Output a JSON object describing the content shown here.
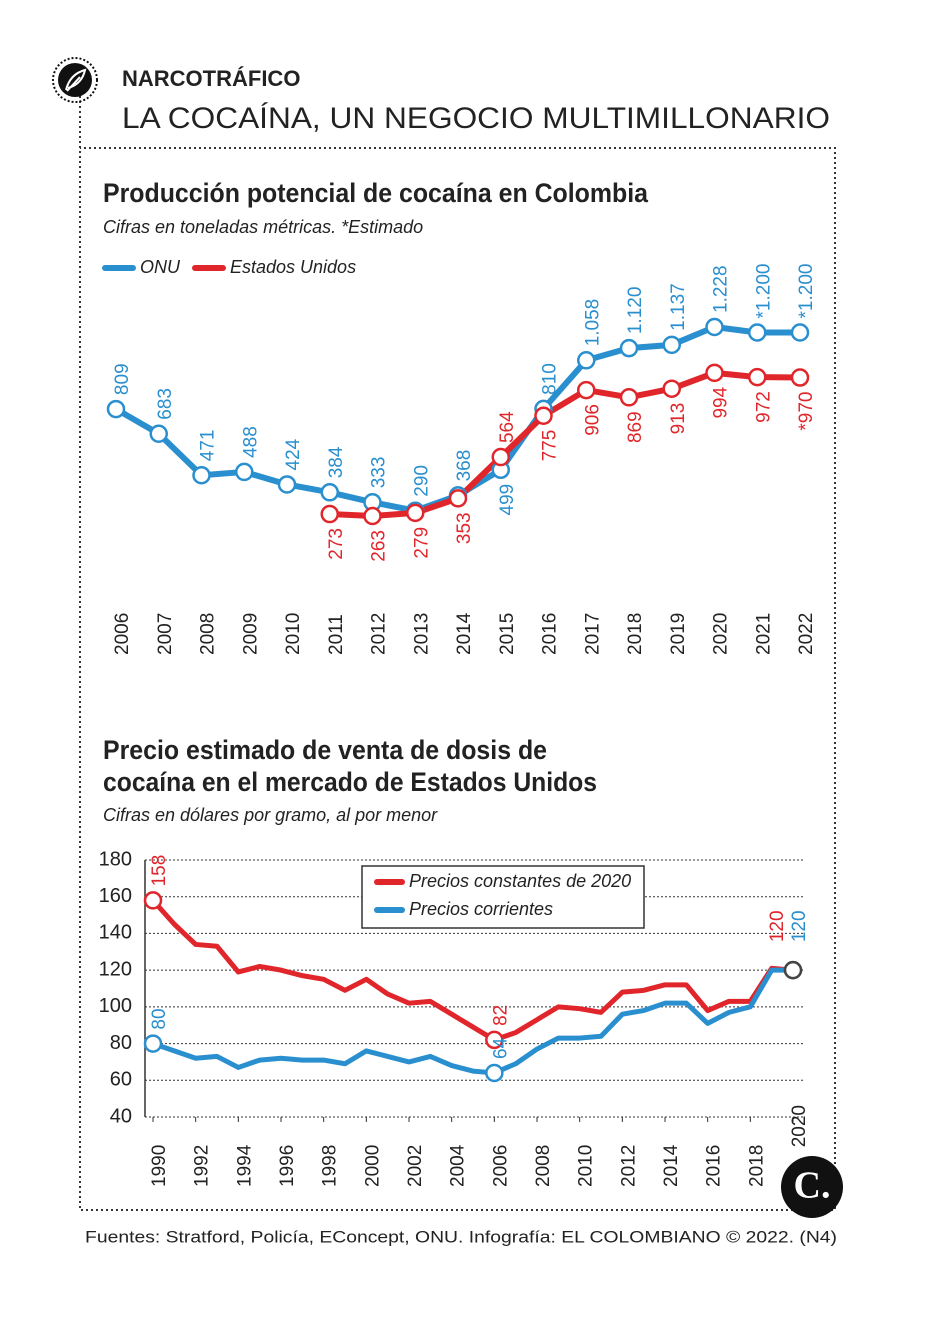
{
  "header": {
    "kicker": "NARCOTRÁFICO",
    "title": "LA COCAÍNA, UN NEGOCIO MULTIMILLONARIO"
  },
  "source": "Fuentes: Stratford, Policía, EConcept, ONU. Infografía: EL COLOMBIANO © 2022. (N4)",
  "chart_data": [
    {
      "type": "line",
      "title": "Producción potencial de cocaína en Colombia",
      "subtitle": "Cifras en toneladas métricas. *Estimado",
      "categories": [
        "2006",
        "2007",
        "2008",
        "2009",
        "2010",
        "2011",
        "2012",
        "2013",
        "2014",
        "2015",
        "2016",
        "2017",
        "2018",
        "2019",
        "2020",
        "2021",
        "2022"
      ],
      "series": [
        {
          "name": "ONU",
          "color": "#2a8fcf",
          "values": [
            809,
            683,
            471,
            488,
            424,
            384,
            333,
            290,
            368,
            499,
            810,
            1058,
            1120,
            1137,
            1228,
            1200,
            1200
          ],
          "value_labels": [
            "809",
            "683",
            "471",
            "488",
            "424",
            "384",
            "333",
            "290",
            "368",
            "499",
            "810",
            "1.058",
            "1.120",
            "1.137",
            "1.228",
            "*1.200",
            "*1.200"
          ]
        },
        {
          "name": "Estados Unidos",
          "color": "#e0262b",
          "values": [
            null,
            null,
            null,
            null,
            null,
            273,
            263,
            279,
            353,
            564,
            775,
            906,
            869,
            913,
            994,
            972,
            970
          ],
          "value_labels": [
            null,
            null,
            null,
            null,
            null,
            "273",
            "263",
            "279",
            "353",
            "564",
            "775",
            "906",
            "869",
            "913",
            "994",
            "972",
            "*970"
          ]
        }
      ]
    },
    {
      "type": "line",
      "title": "Precio estimado de venta de dosis de cocaína en el mercado de Estados Unidos",
      "subtitle": "Cifras en dólares por gramo, al por menor",
      "x": [
        1990,
        1991,
        1992,
        1993,
        1994,
        1995,
        1996,
        1997,
        1998,
        1999,
        2000,
        2001,
        2002,
        2003,
        2004,
        2005,
        2006,
        2007,
        2008,
        2009,
        2010,
        2011,
        2012,
        2013,
        2014,
        2015,
        2016,
        2017,
        2018,
        2019,
        2020
      ],
      "xlim": [
        1990,
        2020
      ],
      "xticks": [
        1990,
        1992,
        1994,
        1996,
        1998,
        2000,
        2002,
        2004,
        2006,
        2008,
        2010,
        2012,
        2014,
        2016,
        2018,
        2020
      ],
      "ylim": [
        40,
        180
      ],
      "yticks": [
        40,
        60,
        80,
        100,
        120,
        140,
        160,
        180
      ],
      "grid": true,
      "series": [
        {
          "name": "Precios constantes de 2020",
          "color": "#e0262b",
          "values": [
            158,
            145,
            134,
            133,
            119,
            122,
            120,
            117,
            115,
            109,
            115,
            107,
            102,
            103,
            96,
            89,
            82,
            86,
            93,
            100,
            99,
            97,
            108,
            109,
            112,
            112,
            98,
            103,
            103,
            121,
            120
          ],
          "value_labels": [
            "158",
            null,
            null,
            null,
            null,
            null,
            null,
            null,
            null,
            null,
            null,
            null,
            null,
            null,
            null,
            null,
            "82",
            null,
            null,
            null,
            null,
            null,
            null,
            null,
            null,
            null,
            null,
            null,
            null,
            null,
            "120"
          ]
        },
        {
          "name": "Precios corrientes",
          "color": "#2a8fcf",
          "values": [
            80,
            76,
            72,
            73,
            67,
            71,
            72,
            71,
            71,
            69,
            76,
            73,
            70,
            73,
            68,
            65,
            64,
            69,
            77,
            83,
            83,
            84,
            96,
            98,
            102,
            102,
            91,
            97,
            100,
            120,
            120
          ],
          "value_labels": [
            "80",
            null,
            null,
            null,
            null,
            null,
            null,
            null,
            null,
            null,
            null,
            null,
            null,
            null,
            null,
            null,
            "64",
            null,
            null,
            null,
            null,
            null,
            null,
            null,
            null,
            null,
            null,
            null,
            null,
            null,
            "120"
          ]
        }
      ]
    }
  ]
}
